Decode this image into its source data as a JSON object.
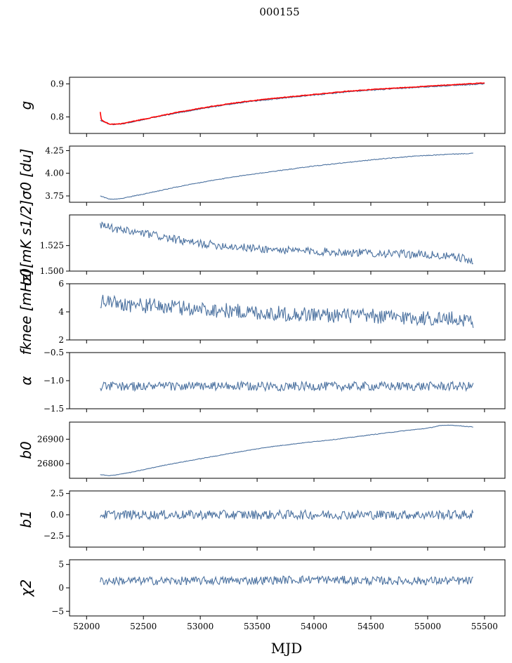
{
  "suptitle": "000155",
  "xlabel": "MJD",
  "x_ticks": [
    "52000",
    "52500",
    "53000",
    "53500",
    "54000",
    "54500",
    "55000",
    "55500"
  ],
  "chart_data": [
    {
      "type": "line",
      "ylabel": "g",
      "ylim": [
        0.75,
        0.92
      ],
      "yticks": [
        "0.8",
        "0.9"
      ],
      "xlim": [
        51850,
        55680
      ],
      "series": [
        {
          "color": "#4c72a0",
          "x": [
            52120,
            52200,
            52300,
            52500,
            52800,
            53100,
            53400,
            53700,
            54000,
            54300,
            54600,
            54900,
            55200,
            55500
          ],
          "y": [
            0.79,
            0.777,
            0.778,
            0.792,
            0.812,
            0.83,
            0.845,
            0.856,
            0.866,
            0.876,
            0.883,
            0.889,
            0.895,
            0.9
          ]
        },
        {
          "color": "#ff0000",
          "x": [
            52120,
            52130,
            52200,
            52300,
            52500,
            52800,
            53100,
            53400,
            53700,
            54000,
            54300,
            54600,
            54900,
            55200,
            55500
          ],
          "y": [
            0.815,
            0.79,
            0.778,
            0.779,
            0.793,
            0.814,
            0.832,
            0.847,
            0.858,
            0.868,
            0.878,
            0.885,
            0.891,
            0.897,
            0.903
          ]
        }
      ]
    },
    {
      "type": "line",
      "ylabel": "σ0 [du]",
      "ylim": [
        3.68,
        4.3
      ],
      "yticks": [
        "3.75",
        "4.00",
        "4.25"
      ],
      "xlim": [
        51850,
        55680
      ],
      "series": [
        {
          "color": "#4c72a0",
          "x": [
            52120,
            52200,
            52300,
            52500,
            52800,
            53100,
            53400,
            53700,
            54000,
            54300,
            54600,
            54900,
            55200,
            55400
          ],
          "y": [
            3.75,
            3.715,
            3.72,
            3.77,
            3.85,
            3.92,
            3.98,
            4.03,
            4.08,
            4.12,
            4.16,
            4.19,
            4.21,
            4.22
          ]
        }
      ]
    },
    {
      "type": "line",
      "ylabel": "σ0[mK s1/2]",
      "ylim": [
        1.5,
        1.555
      ],
      "yticks": [
        "1.500",
        "1.525"
      ],
      "xlim": [
        51850,
        55680
      ],
      "series": [
        {
          "color": "#4c72a0",
          "x": [
            52120,
            52300,
            52600,
            52900,
            53200,
            53500,
            53800,
            54100,
            54400,
            54700,
            55000,
            55300,
            55400
          ],
          "y": [
            1.545,
            1.54,
            1.535,
            1.528,
            1.525,
            1.522,
            1.52,
            1.519,
            1.518,
            1.517,
            1.516,
            1.513,
            1.508
          ]
        }
      ]
    },
    {
      "type": "line",
      "ylabel": "fknee [mHz]",
      "ylim": [
        2,
        6
      ],
      "yticks": [
        "2",
        "4",
        "6"
      ],
      "xlim": [
        51850,
        55680
      ],
      "series": [
        {
          "color": "#4c72a0",
          "x": [
            52120,
            52400,
            52800,
            53200,
            53600,
            54000,
            54400,
            54800,
            55200,
            55400
          ],
          "y": [
            4.8,
            4.5,
            4.3,
            4.1,
            3.9,
            3.8,
            3.7,
            3.6,
            3.5,
            3.4
          ]
        }
      ]
    },
    {
      "type": "line",
      "ylabel": "α",
      "ylim": [
        -1.5,
        -0.5
      ],
      "yticks": [
        "−1.5",
        "−1.0",
        "−0.5"
      ],
      "xlim": [
        51850,
        55680
      ],
      "series": [
        {
          "color": "#4c72a0",
          "x": [
            52120,
            52500,
            53000,
            53500,
            54000,
            54500,
            55000,
            55400
          ],
          "y": [
            -1.1,
            -1.1,
            -1.1,
            -1.1,
            -1.1,
            -1.1,
            -1.1,
            -1.1
          ]
        }
      ]
    },
    {
      "type": "line",
      "ylabel": "b0",
      "ylim": [
        26740,
        26970
      ],
      "yticks": [
        "26800",
        "26900"
      ],
      "xlim": [
        51850,
        55680
      ],
      "series": [
        {
          "color": "#4c72a0",
          "x": [
            52120,
            52200,
            52400,
            52700,
            53000,
            53300,
            53600,
            53900,
            54200,
            54500,
            54800,
            55000,
            55100,
            55200,
            55400
          ],
          "y": [
            26755,
            26750,
            26765,
            26795,
            26820,
            26845,
            26868,
            26885,
            26900,
            26918,
            26935,
            26945,
            26955,
            26958,
            26950
          ]
        }
      ]
    },
    {
      "type": "line",
      "ylabel": "b1",
      "ylim": [
        -3.8,
        2.8
      ],
      "yticks": [
        "−2.5",
        "0.0",
        "2.5"
      ],
      "xlim": [
        51850,
        55680
      ],
      "series": [
        {
          "color": "#4c72a0",
          "x": [
            52120,
            52500,
            53000,
            53500,
            54000,
            54500,
            55000,
            55400
          ],
          "y": [
            0,
            0,
            0,
            0,
            0,
            0,
            0,
            0
          ]
        }
      ]
    },
    {
      "type": "line",
      "ylabel": "χ2",
      "ylim": [
        -6,
        6
      ],
      "yticks": [
        "−5",
        "0",
        "5"
      ],
      "xlim": [
        51850,
        55680
      ],
      "series": [
        {
          "color": "#4c72a0",
          "x": [
            52120,
            52500,
            53000,
            53500,
            54000,
            54500,
            55000,
            55400
          ],
          "y": [
            1.5,
            1.5,
            1.5,
            1.6,
            1.8,
            1.5,
            1.5,
            1.5
          ]
        }
      ]
    }
  ]
}
